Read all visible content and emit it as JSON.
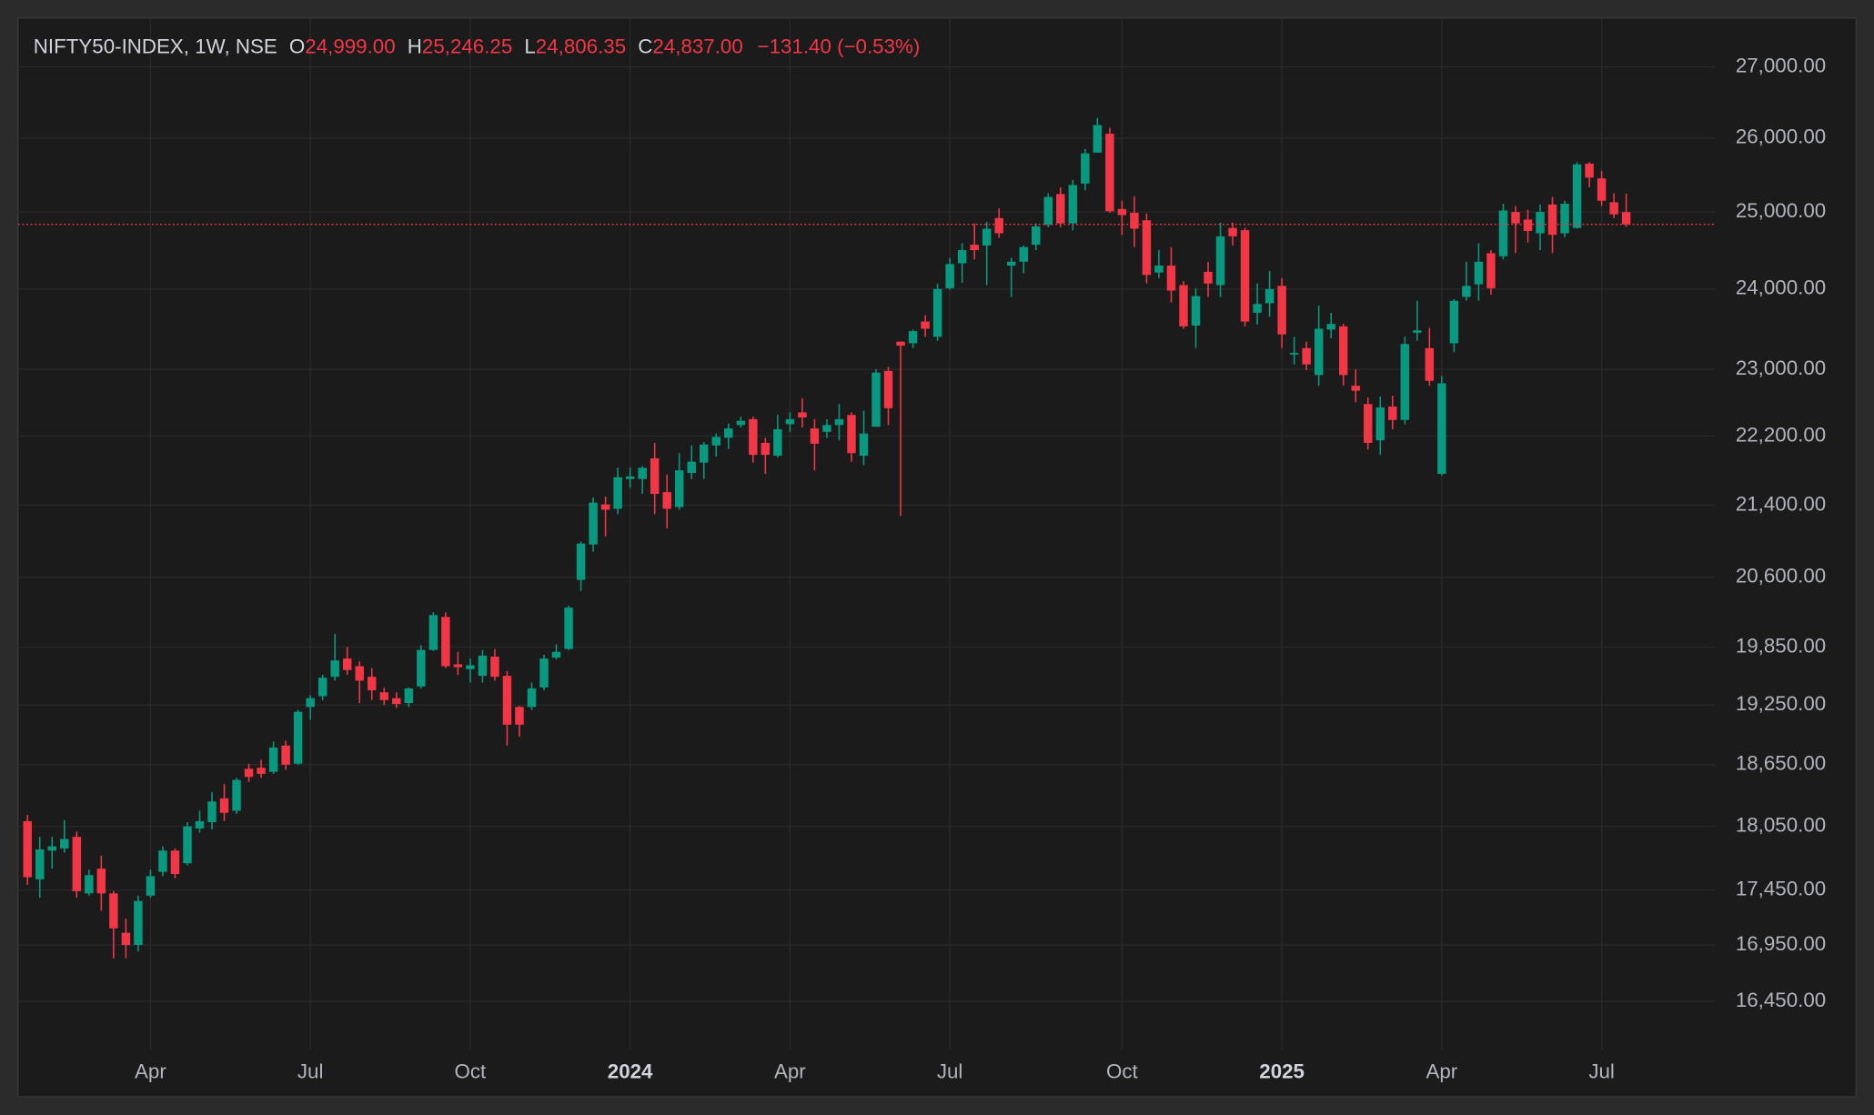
{
  "chart_data": {
    "type": "candlestick",
    "header": {
      "symbol": "NIFTY50-INDEX, 1W, NSE",
      "open_label": "O",
      "open": "24,999.00",
      "high_label": "H",
      "high": "25,246.25",
      "low_label": "L",
      "low": "24,806.35",
      "close_label": "C",
      "close": "24,837.00",
      "change": "−131.40 (−0.53%)"
    },
    "categories": [
      null,
      null,
      null,
      null,
      null,
      null,
      null,
      null,
      null,
      null,
      "Apr",
      null,
      null,
      null,
      null,
      null,
      null,
      null,
      null,
      null,
      null,
      null,
      null,
      "Jul",
      null,
      null,
      null,
      null,
      null,
      null,
      null,
      null,
      null,
      null,
      null,
      null,
      "Oct",
      null,
      null,
      null,
      null,
      null,
      null,
      null,
      null,
      null,
      null,
      null,
      null,
      "2024",
      null,
      null,
      null,
      null,
      null,
      null,
      null,
      null,
      null,
      null,
      null,
      null,
      "Apr",
      null,
      null,
      null,
      null,
      null,
      null,
      null,
      null,
      null,
      null,
      null,
      null,
      "Jul",
      null,
      null,
      null,
      null,
      null,
      null,
      null,
      null,
      null,
      null,
      null,
      null,
      null,
      "Oct",
      null,
      null,
      null,
      null,
      null,
      null,
      null,
      null,
      null,
      null,
      null,
      null,
      "2025",
      null,
      null,
      null,
      null,
      null,
      null,
      null,
      null,
      null,
      null,
      null,
      null,
      "Apr",
      null,
      null,
      null,
      null,
      null,
      null,
      null,
      null,
      null,
      null,
      null,
      null,
      "Jul",
      null,
      null
    ],
    "open": [
      18100,
      17550,
      17820,
      17840,
      17950,
      17420,
      17650,
      17420,
      17060,
      16950,
      17400,
      17620,
      17820,
      17700,
      18030,
      18090,
      18320,
      18200,
      18610,
      18620,
      18580,
      18840,
      18660,
      19230,
      19340,
      19540,
      19730,
      19650,
      19540,
      19380,
      19320,
      19270,
      19440,
      19820,
      20170,
      19670,
      19620,
      19550,
      19750,
      19550,
      19230,
      19230,
      19430,
      19740,
      19830,
      20570,
      20960,
      21410,
      21360,
      21700,
      21700,
      21940,
      21550,
      21380,
      21770,
      21890,
      22090,
      22180,
      22330,
      22400,
      22120,
      21970,
      22340,
      22480,
      22290,
      22250,
      22330,
      22450,
      21970,
      22310,
      22980,
      23340,
      23320,
      23590,
      23400,
      24010,
      24330,
      24570,
      24560,
      24920,
      24300,
      24350,
      24570,
      24830,
      25240,
      24850,
      25380,
      25800,
      26060,
      25040,
      24990,
      24890,
      24210,
      24300,
      24050,
      23540,
      24220,
      24050,
      24790,
      24760,
      23700,
      23820,
      24040,
      23180,
      23260,
      22930,
      23490,
      23530,
      22800,
      22580,
      22150,
      22550,
      22390,
      23450,
      23260,
      21760,
      23320,
      23900,
      24060,
      24460,
      24420,
      25000,
      24900,
      24720,
      25100,
      24720,
      24790,
      25650,
      25450,
      25130,
      24999
    ],
    "high": [
      18160,
      17950,
      17950,
      18110,
      18000,
      17640,
      17770,
      17440,
      17190,
      17400,
      17640,
      17860,
      17840,
      18090,
      18200,
      18380,
      18460,
      18520,
      18660,
      18700,
      18880,
      18890,
      19200,
      19350,
      19560,
      19990,
      19850,
      19700,
      19630,
      19430,
      19380,
      19430,
      19870,
      20220,
      20220,
      19800,
      19730,
      19820,
      19830,
      19600,
      19240,
      19480,
      19770,
      19880,
      20290,
      20990,
      21490,
      21500,
      21830,
      21830,
      21850,
      22120,
      21750,
      22000,
      22090,
      22130,
      22230,
      22350,
      22430,
      22430,
      22180,
      22450,
      22480,
      22650,
      22400,
      22400,
      22580,
      22480,
      22500,
      23000,
      23030,
      23340,
      23490,
      23670,
      24070,
      24400,
      24590,
      24850,
      24870,
      25050,
      24400,
      24560,
      24850,
      25250,
      25330,
      25430,
      25850,
      26280,
      26140,
      25150,
      25210,
      24980,
      24500,
      24540,
      24100,
      24010,
      24350,
      24860,
      24860,
      24790,
      24070,
      24230,
      24140,
      23400,
      23340,
      23790,
      23700,
      23560,
      23000,
      22660,
      22670,
      22680,
      23400,
      23850,
      23510,
      22920,
      23870,
      24350,
      24590,
      24500,
      25110,
      25080,
      25030,
      25100,
      25200,
      25150,
      25670,
      25670,
      25550,
      25250,
      25246.25
    ],
    "low": [
      17500,
      17380,
      17650,
      17800,
      17380,
      17400,
      17260,
      16830,
      16830,
      16890,
      17380,
      17580,
      17560,
      17680,
      17990,
      18020,
      18100,
      18170,
      18480,
      18520,
      18560,
      18600,
      18650,
      19100,
      19300,
      19500,
      19560,
      19270,
      19300,
      19250,
      19220,
      19230,
      19420,
      19810,
      19630,
      19560,
      19480,
      19480,
      19500,
      18840,
      18930,
      19200,
      19400,
      19720,
      19820,
      20450,
      20880,
      21050,
      21300,
      21600,
      21530,
      21300,
      21140,
      21350,
      21700,
      21700,
      21960,
      22050,
      22300,
      21890,
      21760,
      21950,
      22250,
      22300,
      21800,
      22180,
      22150,
      21900,
      21860,
      22310,
      22330,
      21280,
      23260,
      23400,
      23350,
      23990,
      24080,
      24380,
      24050,
      24660,
      23900,
      24200,
      24500,
      24800,
      24800,
      24760,
      25290,
      25800,
      24990,
      24700,
      24540,
      24070,
      24140,
      23830,
      23500,
      23260,
      23900,
      23900,
      24560,
      23530,
      23550,
      23650,
      23260,
      23060,
      22990,
      22800,
      23380,
      22800,
      22600,
      22040,
      21980,
      22280,
      22340,
      23350,
      22800,
      21740,
      23210,
      23850,
      23850,
      23930,
      24380,
      24460,
      24600,
      24500,
      24460,
      24670,
      24780,
      25330,
      25080,
      24920,
      24806.35
    ],
    "close": [
      17570,
      17830,
      17860,
      17930,
      17440,
      17590,
      17420,
      17100,
      16950,
      17350,
      17580,
      17820,
      17600,
      18050,
      18100,
      18290,
      18180,
      18500,
      18530,
      18560,
      18820,
      18650,
      19180,
      19320,
      19530,
      19710,
      19610,
      19500,
      19400,
      19300,
      19260,
      19420,
      19820,
      20190,
      19650,
      19640,
      19660,
      19760,
      19540,
      19050,
      19050,
      19420,
      19730,
      19800,
      20270,
      20970,
      21430,
      21350,
      21720,
      21730,
      21830,
      21530,
      21360,
      21800,
      21900,
      22100,
      22190,
      22290,
      22380,
      21980,
      21980,
      22280,
      22400,
      22420,
      22110,
      22330,
      22400,
      22000,
      22230,
      22960,
      22530,
      23290,
      23470,
      23500,
      24000,
      24320,
      24500,
      24500,
      24780,
      24720,
      24350,
      24540,
      24810,
      25200,
      24850,
      25360,
      25790,
      26180,
      25010,
      24960,
      24780,
      24180,
      24300,
      23980,
      23530,
      23910,
      24070,
      24680,
      24680,
      23590,
      23810,
      24000,
      23430,
      23200,
      23060,
      23500,
      23560,
      22930,
      22740,
      22120,
      22540,
      22390,
      23310,
      23480,
      22860,
      22830,
      23850,
      24040,
      24350,
      24010,
      25020,
      24850,
      24750,
      25000,
      24700,
      25110,
      25640,
      25460,
      25150,
      24970,
      24837
    ],
    "up_color": "#089981",
    "down_color": "#f23645",
    "log_scale": true,
    "grid": true,
    "ylim": [
      16040,
      27710
    ],
    "yticks": [
      {
        "value": 16450,
        "label": "16,450.00"
      },
      {
        "value": 16950,
        "label": "16,950.00"
      },
      {
        "value": 17450,
        "label": "17,450.00"
      },
      {
        "value": 18050,
        "label": "18,050.00"
      },
      {
        "value": 18650,
        "label": "18,650.00"
      },
      {
        "value": 19250,
        "label": "19,250.00"
      },
      {
        "value": 19850,
        "label": "19,850.00"
      },
      {
        "value": 20600,
        "label": "20,600.00"
      },
      {
        "value": 21400,
        "label": "21,400.00"
      },
      {
        "value": 22200,
        "label": "22,200.00"
      },
      {
        "value": 23000,
        "label": "23,000.00"
      },
      {
        "value": 24000,
        "label": "24,000.00"
      },
      {
        "value": 25000,
        "label": "25,000.00"
      },
      {
        "value": 26000,
        "label": "26,000.00"
      },
      {
        "value": 27000,
        "label": "27,000.00"
      }
    ]
  }
}
